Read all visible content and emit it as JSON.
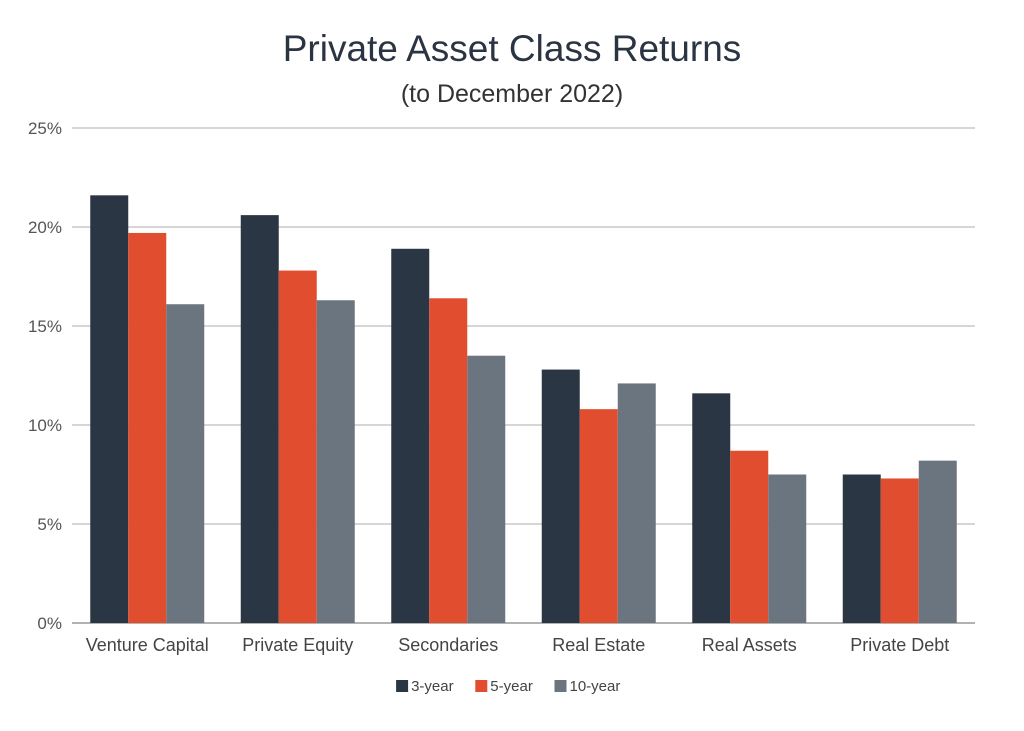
{
  "chart_data": {
    "type": "bar",
    "title": "Private Asset Class Returns",
    "subtitle": "(to December 2022)",
    "categories": [
      "Venture Capital",
      "Private Equity",
      "Secondaries",
      "Real Estate",
      "Real Assets",
      "Private Debt"
    ],
    "series": [
      {
        "name": "3-year",
        "color": "#2b3644",
        "values": [
          21.6,
          20.6,
          18.9,
          12.8,
          11.6,
          7.5
        ]
      },
      {
        "name": "5-year",
        "color": "#e04e2f",
        "values": [
          19.7,
          17.8,
          16.4,
          10.8,
          8.7,
          7.3
        ]
      },
      {
        "name": "10-year",
        "color": "#6b7580",
        "values": [
          16.1,
          16.3,
          13.5,
          12.1,
          7.5,
          8.2
        ]
      }
    ],
    "y_ticks": [
      "0%",
      "5%",
      "10%",
      "15%",
      "20%",
      "25%"
    ],
    "ylim": [
      0,
      25
    ],
    "grid": true,
    "legend_position": "bottom"
  }
}
